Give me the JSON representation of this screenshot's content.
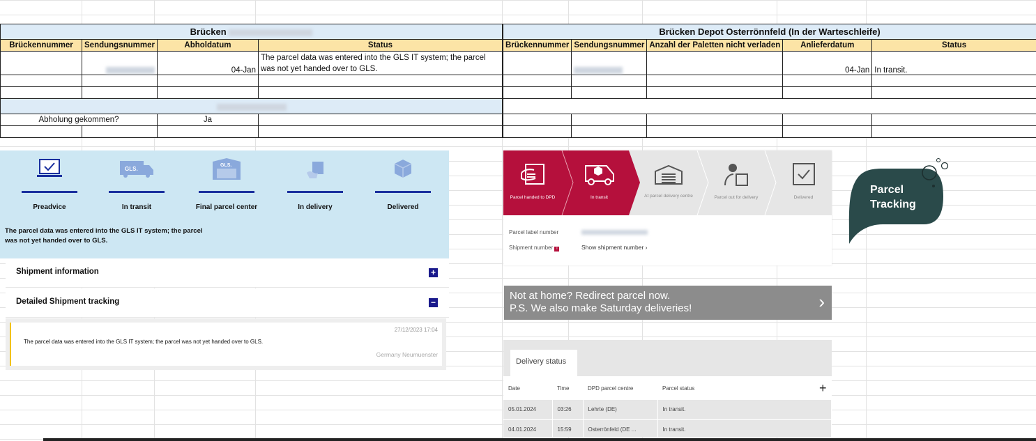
{
  "sheet_left": {
    "title": "Brücken",
    "headers": [
      "Brückennummer",
      "Sendungsnummer",
      "Abholdatum",
      "Status"
    ],
    "row": {
      "date": "04-Jan",
      "status": "The parcel data was entered into the GLS IT system; the parcel was not yet handed over to GLS."
    },
    "pickup_label": "Abholung gekommen?",
    "pickup_value": "Ja"
  },
  "sheet_right": {
    "title": "Brücken  Depot Osterrönnfeld (In der Warteschleife)",
    "headers": [
      "Brückennummer",
      "Sendungsnummer",
      "Anzahl der Paletten nicht verladen",
      "Anlieferdatum",
      "Status"
    ],
    "row": {
      "date": "04-Jan",
      "status": "In transit."
    }
  },
  "gls": {
    "steps": [
      {
        "label": "Preadvice",
        "icon": "laptop-check-icon"
      },
      {
        "label": "In transit",
        "icon": "truck-icon"
      },
      {
        "label": "Final parcel center",
        "icon": "warehouse-icon"
      },
      {
        "label": "In delivery",
        "icon": "hand-parcel-icon"
      },
      {
        "label": "Delivered",
        "icon": "box-icon"
      }
    ],
    "message": "The parcel data was entered into the GLS IT system; the parcel was not yet handed over to GLS.",
    "shipment_info": "Shipment information",
    "detailed_tracking": "Detailed Shipment tracking",
    "event": {
      "datetime": "27/12/2023 17:04",
      "text": "The parcel data was entered into the GLS IT system; the parcel was not yet handed over to GLS.",
      "location": "Germany Neumuenster"
    },
    "accent": "#1a2f9e",
    "bg": "#cde7f3"
  },
  "dpd": {
    "steps": [
      {
        "label": "Parcel handed to DPD",
        "active": true
      },
      {
        "label": "In transit",
        "active": true
      },
      {
        "label": "At parcel delivery centre",
        "active": false
      },
      {
        "label": "Parcel out for delivery",
        "active": false
      },
      {
        "label": "Delivered",
        "active": false
      }
    ],
    "parcel_label": "Parcel label number",
    "shipment_label": "Shipment number",
    "show_shipment": "Show shipment number",
    "banner_line1": "Not at home? Redirect parcel now.",
    "banner_line2": "P.S. We also make Saturday deliveries!",
    "tab": "Delivery status",
    "columns": [
      "Date",
      "Time",
      "DPD parcel centre",
      "Parcel status"
    ],
    "rows": [
      [
        "05.01.2024",
        "03:26",
        "Lehrte (DE)",
        "In transit."
      ],
      [
        "04.01.2024",
        "15:59",
        "Osterrönfeld (DE ...",
        "In transit."
      ]
    ],
    "accent": "#b5103c"
  },
  "badge": {
    "line1": "Parcel",
    "line2": "Tracking",
    "color": "#2a4a4a"
  }
}
